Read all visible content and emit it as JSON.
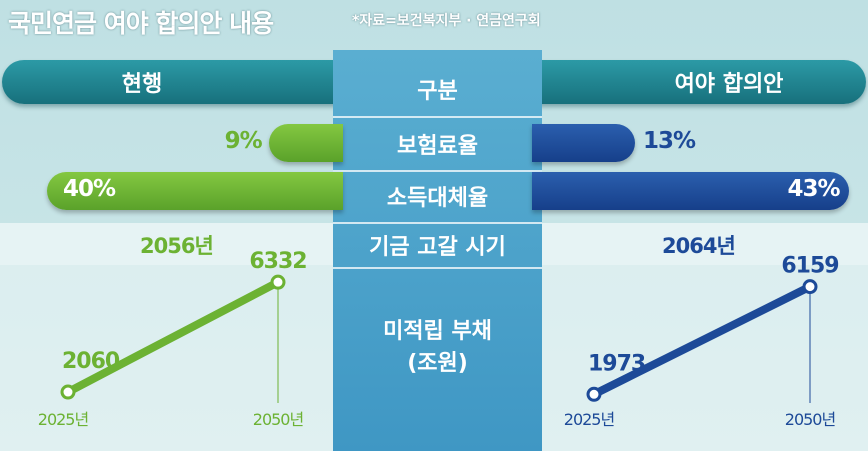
{
  "header": {
    "title": "국민연금 여야 합의안 내용",
    "source": "*자료=보건복지부 · 연금연구회"
  },
  "columns": {
    "left": "현행",
    "center": "구분",
    "right": "여야 합의안"
  },
  "rows": {
    "insurance": "보험료율",
    "replacement": "소득대체율",
    "depletion": "기금 고갈 시기",
    "debt_line1": "미적립 부채",
    "debt_line2": "(조원)"
  },
  "colors": {
    "current": "#6cb233",
    "proposal": "#1d4a98",
    "center": "#4aa0c8",
    "header_pill": "#1f8490"
  },
  "chart_data": [
    {
      "type": "bar",
      "categories": [
        "보험료율",
        "소득대체율"
      ],
      "series": [
        {
          "name": "현행",
          "values": [
            9,
            40
          ],
          "labels": [
            "9%",
            "40%"
          ]
        },
        {
          "name": "여야 합의안",
          "values": [
            13,
            43
          ],
          "labels": [
            "13%",
            "43%"
          ]
        }
      ]
    },
    {
      "type": "table",
      "category": "기금 고갈 시기",
      "values": {
        "현행": "2056년",
        "여야 합의안": "2064년"
      }
    },
    {
      "type": "line",
      "name": "현행",
      "categories": [
        "2025년",
        "2050년"
      ],
      "values": [
        2060,
        6332
      ],
      "labels": [
        "2060",
        "6332"
      ]
    },
    {
      "type": "line",
      "name": "여야 합의안",
      "categories": [
        "2025년",
        "2050년"
      ],
      "values": [
        1973,
        6159
      ],
      "labels": [
        "1973",
        "6159"
      ]
    }
  ]
}
